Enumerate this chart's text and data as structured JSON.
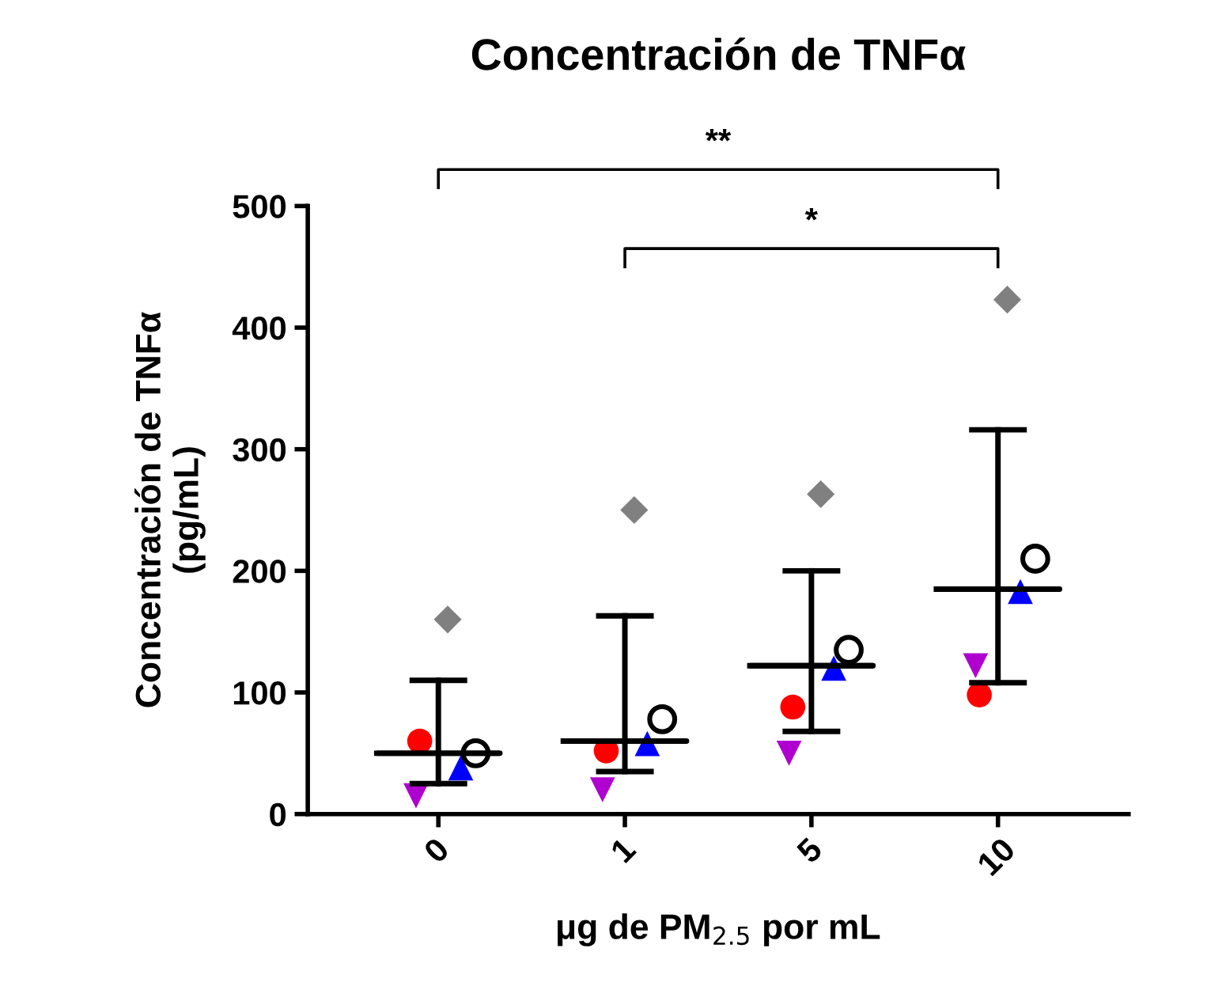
{
  "chart_data": {
    "type": "scatter",
    "title": "Concentración de TNFα",
    "xlabel": "μg de PM$_{2.5}$ por mL",
    "ylabel": "Concentración de TNFα\n(pg/mL)",
    "categories": [
      "0",
      "1",
      "5",
      "10"
    ],
    "series": [
      {
        "marker": "diamond",
        "color": "#808080",
        "values": [
          160,
          250,
          263,
          423
        ]
      },
      {
        "marker": "circle",
        "color": "#ff0000",
        "values": [
          60,
          52,
          88,
          98
        ]
      },
      {
        "marker": "triangle",
        "color": "#0000ff",
        "values": [
          38,
          58,
          120,
          183
        ]
      },
      {
        "marker": "triangle_down",
        "color": "#b000d0",
        "values": [
          15,
          20,
          50,
          122
        ]
      },
      {
        "marker": "circle_open",
        "color": "#000000",
        "values": [
          50,
          78,
          135,
          210
        ]
      },
      {
        "type": "box",
        "color": "#000000",
        "boxes": [
          {
            "low": 25,
            "q1": 50,
            "median": 50,
            "q3": 50,
            "high": 110
          },
          {
            "low": 35,
            "q1": 60,
            "median": 60,
            "q3": 60,
            "high": 163
          },
          {
            "low": 68,
            "q1": 122,
            "median": 122,
            "q3": 122,
            "high": 200
          },
          {
            "low": 108,
            "q1": 185,
            "median": 185,
            "q3": 185,
            "high": 316
          }
        ]
      }
    ],
    "ylim": [
      0,
      500
    ],
    "yticks": [
      0,
      100,
      200,
      300,
      400,
      500
    ],
    "grid": false,
    "annotations": [
      "**",
      "*"
    ]
  }
}
